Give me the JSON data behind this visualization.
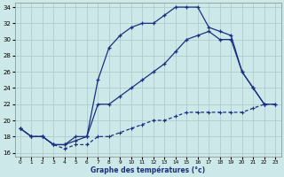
{
  "xlabel": "Graphe des températures (°c)",
  "background_color": "#cde8e8",
  "grid_color": "#a8c8c8",
  "line_color": "#1a3080",
  "ylim": [
    15.5,
    34.5
  ],
  "yticks": [
    16,
    18,
    20,
    22,
    24,
    26,
    28,
    30,
    32,
    34
  ],
  "xlim": [
    -0.5,
    23.5
  ],
  "xticks": [
    0,
    1,
    2,
    3,
    4,
    5,
    6,
    7,
    8,
    9,
    10,
    11,
    12,
    13,
    14,
    15,
    16,
    17,
    18,
    19,
    20,
    21,
    22,
    23
  ],
  "curve1_x": [
    0,
    1,
    2,
    3,
    4,
    5,
    6,
    7,
    8,
    9,
    10,
    11,
    12,
    13,
    14,
    15,
    16,
    17,
    18,
    19,
    20,
    21,
    22
  ],
  "curve1_y": [
    19,
    18,
    18,
    17,
    17,
    18,
    18,
    25,
    29,
    30.5,
    31.5,
    32,
    32,
    33,
    34,
    34,
    34,
    31.5,
    31,
    30.5,
    26,
    24,
    22
  ],
  "curve2_x": [
    0,
    1,
    2,
    3,
    4,
    5,
    6,
    7,
    8,
    9,
    10,
    11,
    12,
    13,
    14,
    15,
    16,
    17,
    18,
    19,
    20,
    21,
    22,
    23
  ],
  "curve2_y": [
    19,
    18,
    18,
    17,
    17,
    17.5,
    18,
    22,
    22,
    23,
    24,
    25,
    26,
    27,
    28.5,
    30,
    30.5,
    31,
    30,
    30,
    26,
    24,
    22,
    22
  ],
  "curve3_x": [
    0,
    1,
    2,
    3,
    4,
    5,
    6,
    7,
    8,
    9,
    10,
    11,
    12,
    13,
    14,
    15,
    16,
    17,
    18,
    19,
    20,
    21,
    22,
    23
  ],
  "curve3_y": [
    19,
    18,
    18,
    17,
    16.5,
    17,
    17,
    18,
    18,
    18.5,
    19,
    19.5,
    20,
    20,
    20.5,
    21,
    21,
    21,
    21,
    21,
    21,
    21.5,
    22,
    22
  ]
}
